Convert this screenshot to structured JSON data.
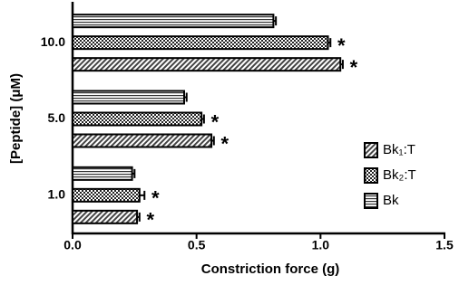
{
  "chart_data": {
    "type": "hbar",
    "xlabel": "Constriction force (g)",
    "ylabel": "[Peptide] (μM)",
    "categories": [
      "10.0",
      "5.0",
      "1.0"
    ],
    "xlim": [
      0,
      1.5
    ],
    "xticks": [
      {
        "value": 0,
        "label": "0.0"
      },
      0.5,
      {
        "value": 1,
        "label": "1.0"
      },
      1.5
    ],
    "legend": "lower right",
    "series": [
      {
        "name": "Bk₁:T",
        "pattern": "diagonal",
        "color": "#000000",
        "values": [
          1.08,
          0.56,
          0.26
        ],
        "errors": [
          0.01,
          0.01,
          0.01
        ],
        "annotations": [
          "*",
          "*",
          "*"
        ]
      },
      {
        "name": "Bk₂:T",
        "pattern": "checker",
        "color": "#000000",
        "values": [
          1.03,
          0.52,
          0.27
        ],
        "errors": [
          0.01,
          0.01,
          0.02
        ],
        "annotations": [
          "*",
          "*",
          "*"
        ]
      },
      {
        "name": "Bk",
        "pattern": "horizontal",
        "color": "#000000",
        "values": [
          0.81,
          0.45,
          0.24
        ],
        "errors": [
          0.01,
          0.01,
          0.01
        ]
      }
    ]
  }
}
